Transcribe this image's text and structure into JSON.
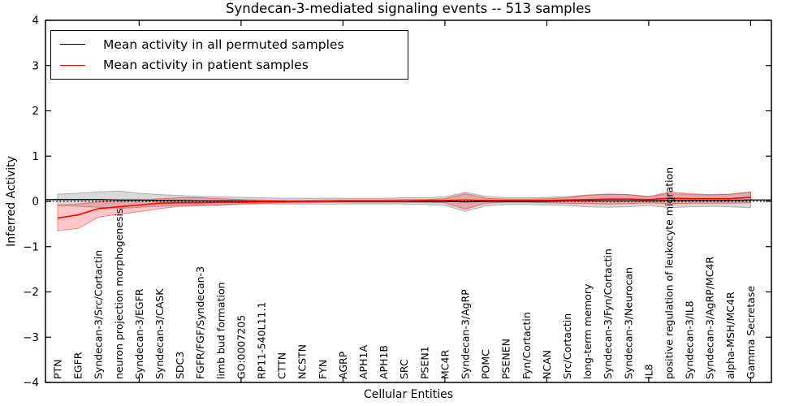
{
  "chart_data": {
    "type": "line",
    "title": "Syndecan-3-mediated signaling events -- 513 samples",
    "xlabel": "Cellular Entities",
    "ylabel": "Inferred Activity",
    "ylim": [
      -4,
      4
    ],
    "yticks": [
      4,
      3,
      2,
      1,
      0,
      -1,
      -2,
      -3,
      -4
    ],
    "x_major_tick_every": 5,
    "grid": false,
    "legend_position": "upper left",
    "zero_line": {
      "style": "dotted",
      "color": "#000000",
      "value": 0
    },
    "categories": [
      "PTN",
      "EGFR",
      "Syndecan-3/Src/Cortactin",
      "neuron projection morphogenesis",
      "Syndecan-3/EGFR",
      "Syndecan-3/CASK",
      "SDC3",
      "FGFR/FGF/Syndecan-3",
      "limb bud formation",
      "GO:0007205",
      "RP11-540L11.1",
      "CTTN",
      "NCSTN",
      "FYN",
      "AGRP",
      "APH1A",
      "APH1B",
      "SRC",
      "PSEN1",
      "MC4R",
      "Syndecan-3/AgRP",
      "POMC",
      "PSENEN",
      "Fyn/Cortactin",
      "NCAN",
      "Src/Cortactin",
      "long-term memory",
      "Syndecan-3/Fyn/Cortactin",
      "Syndecan-3/Neurocan",
      "IL8",
      "positive regulation of leukocyte migration",
      "Syndecan-3/IL8",
      "Syndecan-3/AgRP/MC4R",
      "alpha-MSH/MC4R",
      "Gamma Secretase"
    ],
    "series": [
      {
        "name": "Mean activity in all permuted samples",
        "color": "#000000",
        "band_color": "#808080",
        "values": [
          0.04,
          0.04,
          0.04,
          0.03,
          0.03,
          0.02,
          0.02,
          0.01,
          0.01,
          0.01,
          0.0,
          0.0,
          0.0,
          0.0,
          0.0,
          0.0,
          0.0,
          0.0,
          0.0,
          0.0,
          -0.01,
          0.0,
          0.0,
          0.0,
          0.0,
          0.01,
          0.01,
          0.01,
          0.01,
          0.01,
          0.02,
          0.02,
          0.02,
          0.02,
          0.03
        ],
        "band_low": [
          -0.09,
          -0.11,
          -0.13,
          -0.16,
          -0.13,
          -0.11,
          -0.09,
          -0.08,
          -0.08,
          -0.07,
          -0.06,
          -0.06,
          -0.06,
          -0.06,
          -0.06,
          -0.06,
          -0.06,
          -0.06,
          -0.07,
          -0.09,
          -0.22,
          -0.1,
          -0.07,
          -0.07,
          -0.08,
          -0.09,
          -0.12,
          -0.13,
          -0.12,
          -0.09,
          -0.14,
          -0.12,
          -0.11,
          -0.12,
          -0.14
        ],
        "band_high": [
          0.16,
          0.18,
          0.21,
          0.23,
          0.18,
          0.15,
          0.13,
          0.11,
          0.1,
          0.09,
          0.08,
          0.07,
          0.07,
          0.07,
          0.07,
          0.07,
          0.07,
          0.08,
          0.08,
          0.1,
          0.2,
          0.11,
          0.08,
          0.08,
          0.09,
          0.11,
          0.14,
          0.16,
          0.15,
          0.11,
          0.17,
          0.15,
          0.14,
          0.16,
          0.21
        ]
      },
      {
        "name": "Mean activity in patient samples",
        "color": "#ff0000",
        "band_color": "#ff0000",
        "values": [
          -0.37,
          -0.3,
          -0.16,
          -0.12,
          -0.08,
          -0.04,
          -0.03,
          -0.03,
          -0.02,
          -0.02,
          -0.01,
          -0.01,
          0.0,
          0.0,
          0.01,
          0.01,
          0.01,
          0.01,
          0.02,
          0.02,
          0.03,
          0.02,
          0.02,
          0.02,
          0.02,
          0.03,
          0.04,
          0.05,
          0.05,
          0.04,
          0.07,
          0.06,
          0.06,
          0.06,
          0.09
        ],
        "band_low": [
          -0.65,
          -0.6,
          -0.35,
          -0.28,
          -0.23,
          -0.16,
          -0.11,
          -0.1,
          -0.08,
          -0.05,
          -0.04,
          -0.03,
          -0.03,
          -0.02,
          -0.02,
          -0.02,
          -0.02,
          -0.02,
          -0.02,
          -0.03,
          -0.17,
          -0.04,
          -0.02,
          -0.02,
          -0.03,
          -0.04,
          -0.05,
          -0.06,
          -0.05,
          -0.03,
          -0.05,
          -0.04,
          -0.04,
          -0.04,
          -0.03
        ],
        "band_high": [
          -0.08,
          -0.06,
          -0.01,
          0.0,
          0.02,
          0.06,
          0.08,
          0.08,
          0.06,
          0.04,
          0.03,
          0.02,
          0.02,
          0.03,
          0.03,
          0.03,
          0.03,
          0.04,
          0.04,
          0.06,
          0.17,
          0.07,
          0.05,
          0.05,
          0.06,
          0.08,
          0.14,
          0.16,
          0.15,
          0.1,
          0.21,
          0.17,
          0.15,
          0.16,
          0.2
        ]
      }
    ]
  }
}
